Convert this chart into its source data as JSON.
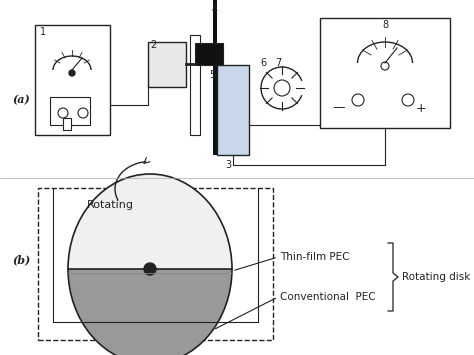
{
  "fig_width": 4.74,
  "fig_height": 3.55,
  "dpi": 100,
  "bg_color": "#ffffff",
  "label_a": "(a)",
  "label_b": "(b)",
  "text_rotating": "Rotating",
  "text_thin_film": "Thin-film PEC",
  "text_conventional": "Conventional  PEC",
  "text_rotating_disk": "Rotating disk PEC",
  "line_color": "#222222",
  "fill_light": "#c8d8ea",
  "fill_gray": "#999999",
  "fill_dark": "#111111",
  "fill_white": "#ffffff",
  "fill_gray2": "#cccccc"
}
